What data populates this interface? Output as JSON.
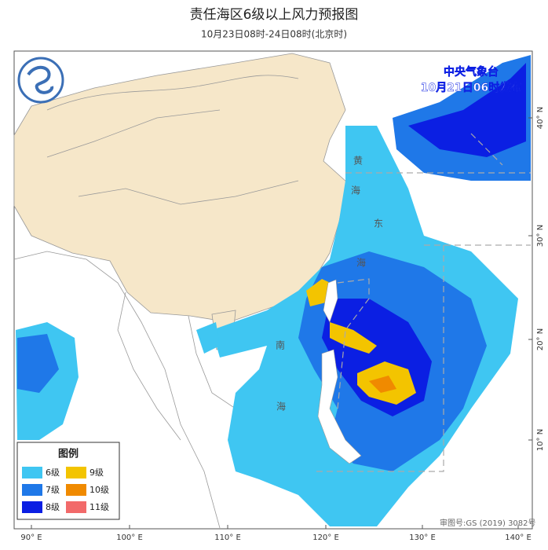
{
  "title": "责任海区6级以上风力预报图",
  "subtitle": "10月23日08时-24日08时(北京时)",
  "issuer": "中央气象台",
  "issue_time": "10月21日06时发布",
  "legend": {
    "title": "图例",
    "items": [
      {
        "label": "6级",
        "color": "#3fc6f2"
      },
      {
        "label": "7级",
        "color": "#1f78e8"
      },
      {
        "label": "8级",
        "color": "#0b1fe3"
      },
      {
        "label": "9级",
        "color": "#f3c400"
      },
      {
        "label": "10级",
        "color": "#f08a00"
      },
      {
        "label": "11级",
        "color": "#f26a6a"
      }
    ]
  },
  "longitude_labels": [
    "90° E",
    "100° E",
    "110° E",
    "120° E",
    "130° E",
    "140° E"
  ],
  "latitude_labels": [
    "40° N",
    "30° N",
    "20° N",
    "10° N"
  ],
  "sea_labels": [
    "黄",
    "海",
    "东",
    "海",
    "南",
    "海"
  ],
  "approval": "审图号:GS (2019) 3082号"
}
